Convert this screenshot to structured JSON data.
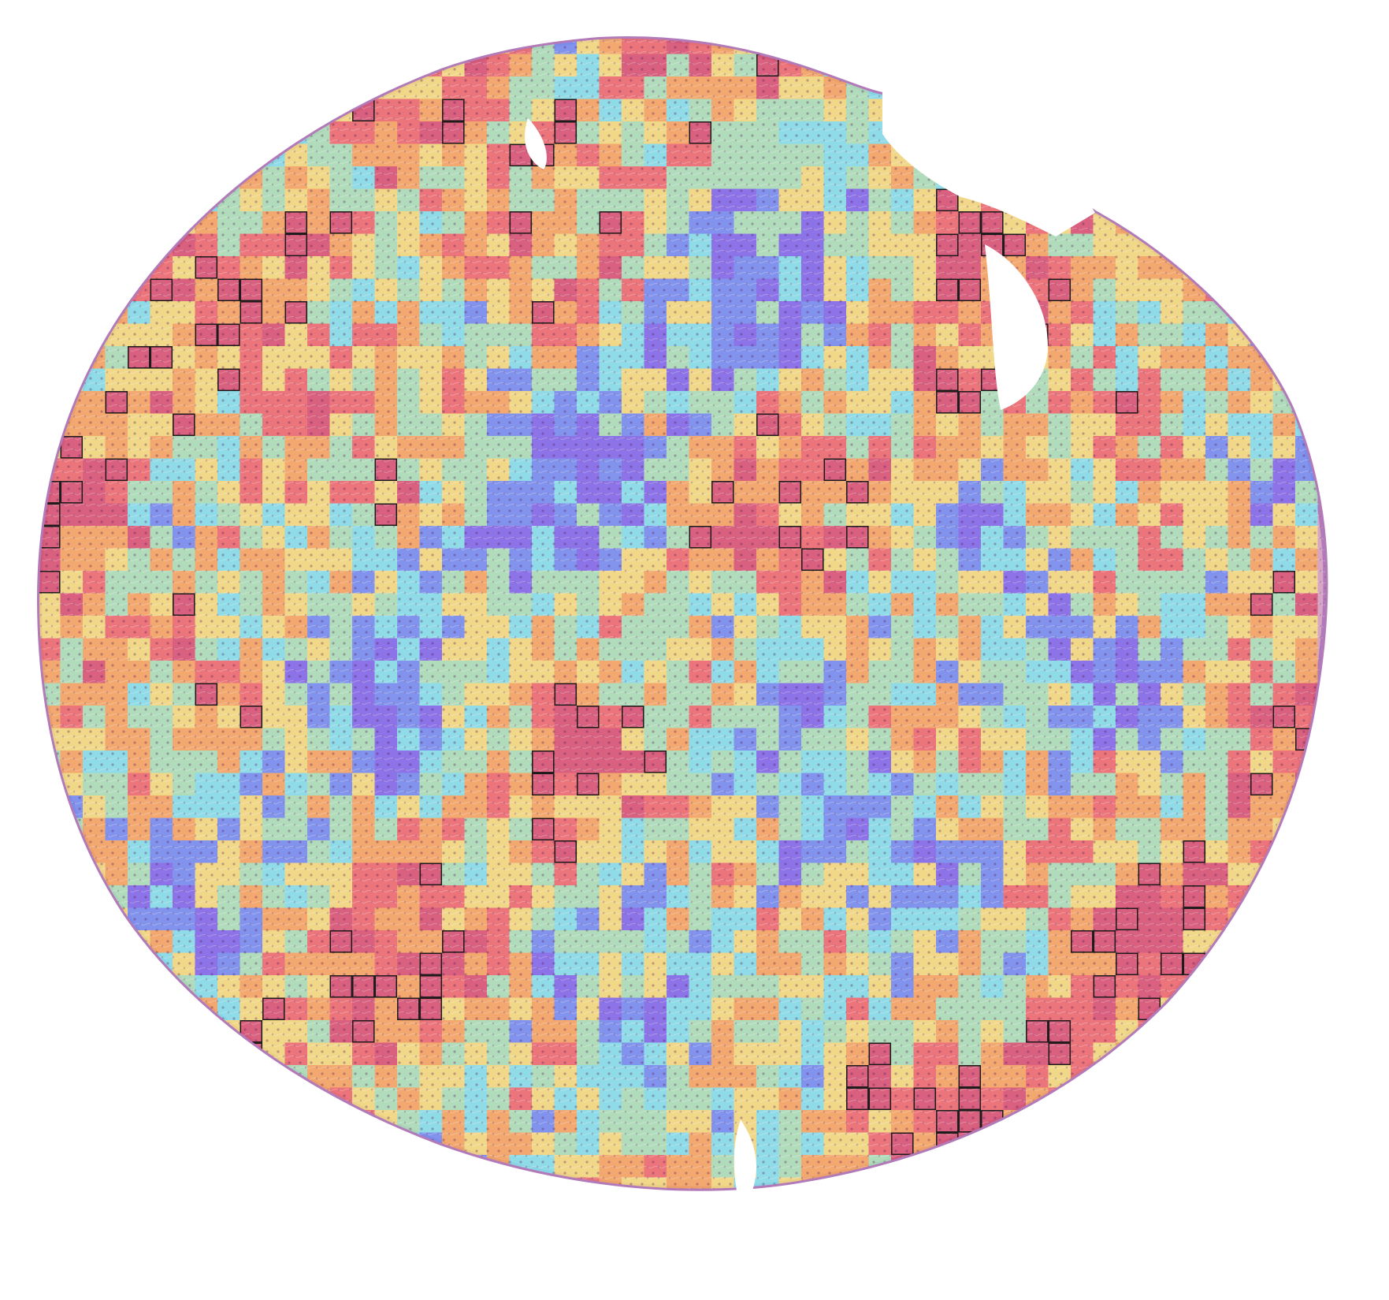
{
  "colormap": [
    "#7b68ee",
    "#6f8ff5",
    "#7fe6ee",
    "#a8e8b8",
    "#f6e27a",
    "#f8a85a",
    "#f06a6a",
    "#d9506e"
  ],
  "colors": {
    "tissue": "#d7a6c7",
    "tissue_edge": "#b27ab8",
    "highlight_stroke": "#1a1a1a",
    "background": "#ffffff"
  }
}
